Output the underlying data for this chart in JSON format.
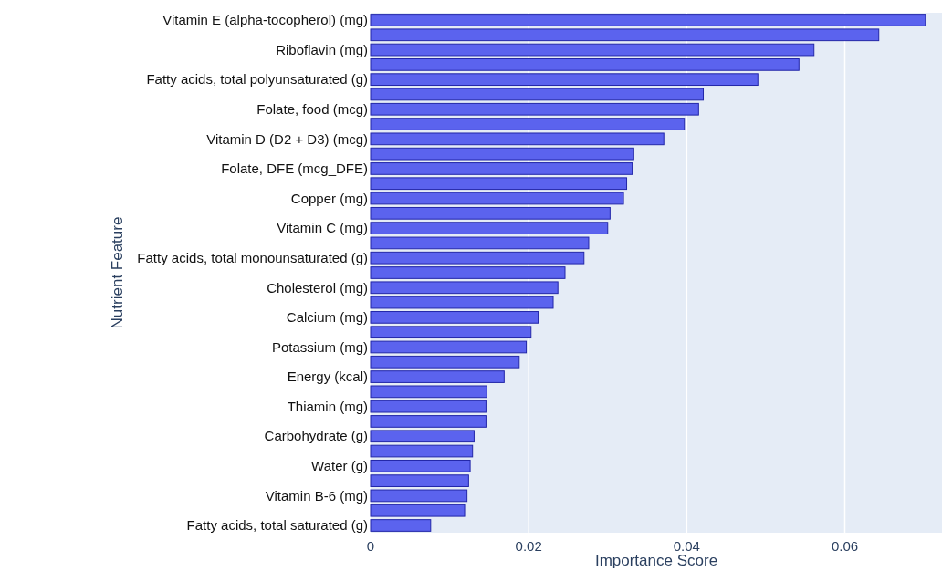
{
  "chart_data": {
    "type": "bar",
    "orientation": "horizontal",
    "xlabel": "Importance Score",
    "ylabel": "Nutrient Feature",
    "categories": [
      "Vitamin E (alpha-tocopherol) (mg)",
      null,
      "Riboflavin (mg)",
      null,
      "Fatty acids, total polyunsaturated (g)",
      null,
      "Folate, food (mcg)",
      null,
      "Vitamin D (D2 + D3) (mcg)",
      null,
      "Folate, DFE (mcg_DFE)",
      null,
      "Copper (mg)",
      null,
      "Vitamin C (mg)",
      null,
      "Fatty acids, total monounsaturated (g)",
      null,
      "Cholesterol (mg)",
      null,
      "Calcium (mg)",
      null,
      "Potassium (mg)",
      null,
      "Energy (kcal)",
      null,
      "Thiamin (mg)",
      null,
      "Carbohydrate (g)",
      null,
      "Water (g)",
      null,
      "Vitamin B-6 (mg)",
      null,
      "Fatty acids, total saturated (g)"
    ],
    "values": [
      0.0702,
      0.0643,
      0.0561,
      0.0542,
      0.049,
      0.0421,
      0.0415,
      0.0397,
      0.0371,
      0.0333,
      0.0331,
      0.0324,
      0.032,
      0.0303,
      0.03,
      0.0276,
      0.027,
      0.0246,
      0.0237,
      0.0231,
      0.0212,
      0.0203,
      0.0197,
      0.0188,
      0.0169,
      0.0147,
      0.0146,
      0.0146,
      0.0131,
      0.0129,
      0.0126,
      0.0124,
      0.0122,
      0.0119,
      0.0076
    ],
    "color": "#5b63ee",
    "xlim": [
      0,
      0.0723
    ],
    "xticks": [
      0,
      0.02,
      0.04,
      0.06
    ],
    "grid": "x"
  }
}
